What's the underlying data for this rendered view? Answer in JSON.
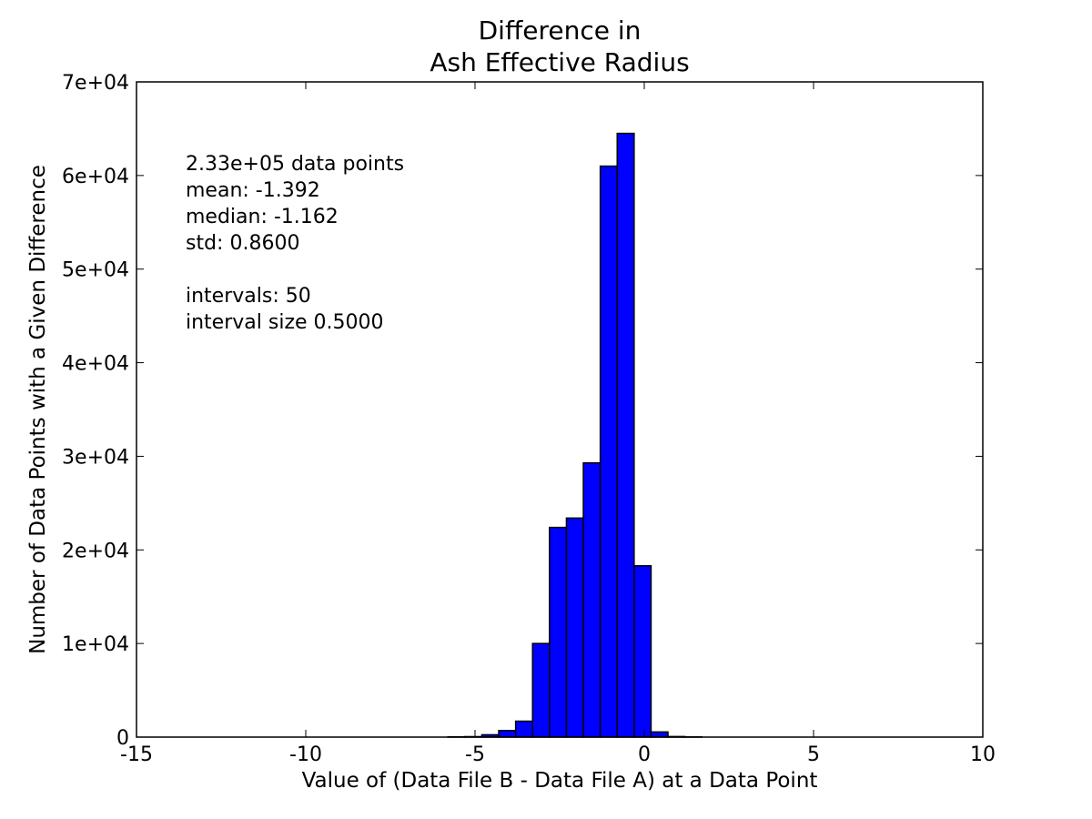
{
  "chart_data": {
    "type": "bar",
    "title_lines": [
      "Difference in",
      "Ash Effective Radius"
    ],
    "xlabel": "Value of (Data File B - Data File A) at a Data Point",
    "ylabel": "Number of Data Points with a Given Difference",
    "xlim": [
      -15,
      10
    ],
    "ylim": [
      0,
      70000
    ],
    "xticks": [
      -15,
      -10,
      -5,
      0,
      5,
      10
    ],
    "xtick_labels": [
      "-15",
      "-10",
      "-5",
      "0",
      "5",
      "10"
    ],
    "yticks": [
      0,
      10000,
      20000,
      30000,
      40000,
      50000,
      60000,
      70000
    ],
    "ytick_labels": [
      "0",
      "1e+04",
      "2e+04",
      "3e+04",
      "4e+04",
      "5e+04",
      "6e+04",
      "7e+04"
    ],
    "grid": false,
    "bar_color": "#0000ff",
    "bin_width": 0.5,
    "bins": [
      {
        "x0": -5.8,
        "x1": -5.3,
        "count": 30
      },
      {
        "x0": -5.3,
        "x1": -4.8,
        "count": 50
      },
      {
        "x0": -4.8,
        "x1": -4.3,
        "count": 250
      },
      {
        "x0": -4.3,
        "x1": -3.8,
        "count": 700
      },
      {
        "x0": -3.8,
        "x1": -3.3,
        "count": 1700
      },
      {
        "x0": -3.3,
        "x1": -2.8,
        "count": 10000
      },
      {
        "x0": -2.8,
        "x1": -2.3,
        "count": 22400
      },
      {
        "x0": -2.3,
        "x1": -1.8,
        "count": 23400
      },
      {
        "x0": -1.8,
        "x1": -1.3,
        "count": 29300
      },
      {
        "x0": -1.3,
        "x1": -0.8,
        "count": 61000
      },
      {
        "x0": -0.8,
        "x1": -0.3,
        "count": 64500
      },
      {
        "x0": -0.3,
        "x1": 0.2,
        "count": 18300
      },
      {
        "x0": 0.2,
        "x1": 0.7,
        "count": 550
      },
      {
        "x0": 0.7,
        "x1": 1.2,
        "count": 60
      },
      {
        "x0": 1.2,
        "x1": 1.7,
        "count": 20
      }
    ],
    "annotation_lines": [
      "2.33e+05 data points",
      "mean: -1.392",
      "median: -1.162",
      "std: 0.8600",
      "",
      "intervals: 50",
      "interval size 0.5000"
    ]
  }
}
